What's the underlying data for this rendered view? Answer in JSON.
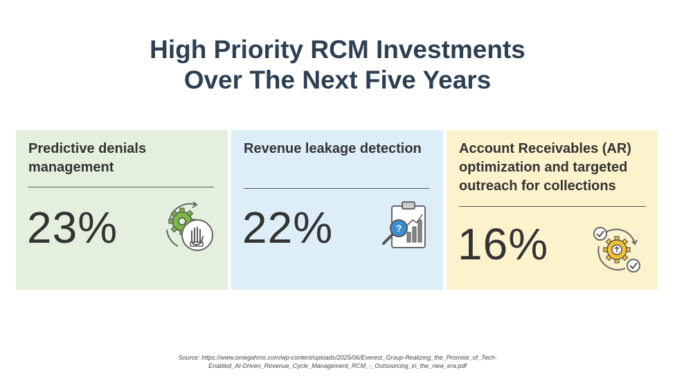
{
  "title": {
    "line1": "High Priority RCM Investments",
    "line2": "Over The Next Five Years"
  },
  "cards": [
    {
      "label": "Predictive denials management",
      "value": "23%",
      "icon": "gear-hand-icon",
      "background": "#e4f0dd"
    },
    {
      "label": "Revenue leakage detection",
      "value": "22%",
      "icon": "clipboard-magnifier-chart-icon",
      "background": "#ddeef8"
    },
    {
      "label": "Account Receivables (AR) optimization and targeted outreach for collections",
      "value": "16%",
      "icon": "gear-cycle-checkmarks-icon",
      "background": "#fcf2cc"
    }
  ],
  "source": {
    "line1": "Source: https://www.omegahms.com/wp-content/uploads/2025/06/Everest_Group-Realizing_the_Promise_of_Tech-",
    "line2": "Enabled_AI-Driven_Revenue_Cycle_Management_RCM_-_Outsourcing_in_the_new_era.pdf"
  },
  "colors": {
    "title": "#2e3f52",
    "accent_green": "#7ab648",
    "accent_blue": "#3a8fd0",
    "accent_yellow": "#f2c230"
  }
}
